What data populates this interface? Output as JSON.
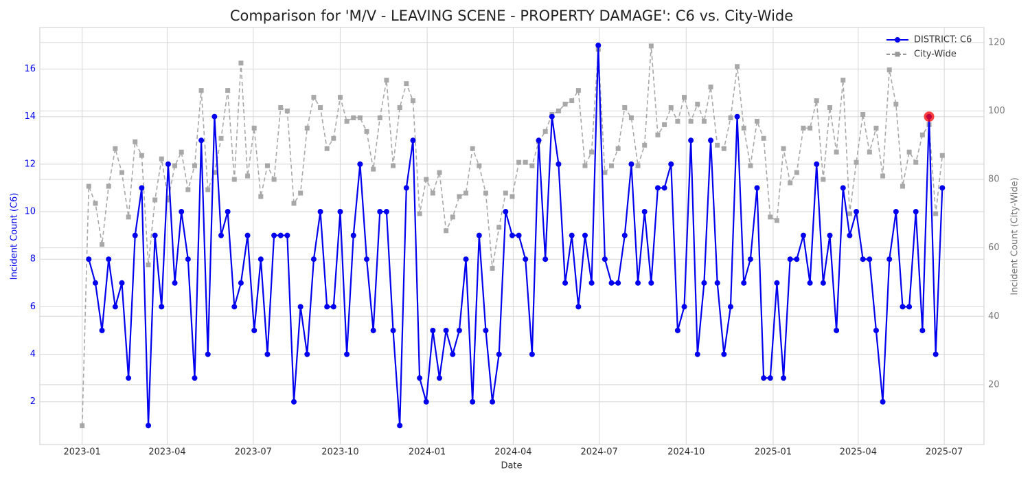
{
  "chart_data": {
    "type": "line",
    "title": "Comparison for 'M/V - LEAVING SCENE - PROPERTY DAMAGE': C6 vs. City-Wide",
    "x_label": "Date",
    "y_label": "Incident Count (C6)",
    "y2_label": "Incident Count (City-Wide)",
    "x": [
      0,
      1,
      2,
      3,
      4,
      5,
      6,
      7,
      8,
      9,
      10,
      11,
      12,
      13,
      14,
      15,
      16,
      17,
      18,
      19,
      20,
      21,
      22,
      23,
      24,
      25,
      26,
      27,
      28,
      29,
      30,
      31,
      32,
      33,
      34,
      35,
      36,
      37,
      38,
      39,
      40,
      41,
      42,
      43,
      44,
      45,
      46,
      47,
      48,
      49,
      50,
      51,
      52,
      53,
      54,
      55,
      56,
      57,
      58,
      59,
      60,
      61,
      62,
      63,
      64,
      65,
      66,
      67,
      68,
      69,
      70,
      71,
      72,
      73,
      74,
      75,
      76,
      77,
      78,
      79,
      80,
      81,
      82,
      83,
      84,
      85,
      86,
      87,
      88,
      89,
      90,
      91,
      92,
      93,
      94,
      95,
      96,
      97,
      98,
      99,
      100,
      101,
      102,
      103,
      104,
      105,
      106,
      107,
      108,
      109,
      110,
      111,
      112,
      113,
      114,
      115,
      116,
      117,
      118,
      119,
      120,
      121,
      122,
      123,
      124,
      125,
      126,
      127,
      128,
      129,
      130
    ],
    "series": [
      {
        "name": "DISTRICT: C6",
        "color": "#0000ee",
        "axis": "y",
        "style": "solid",
        "marker": "circle",
        "values": [
          null,
          8,
          7,
          5,
          8,
          6,
          7,
          3,
          9,
          11,
          1,
          9,
          6,
          12,
          7,
          10,
          8,
          3,
          13,
          4,
          14,
          9,
          10,
          6,
          7,
          9,
          5,
          8,
          4,
          9,
          9,
          9,
          2,
          6,
          4,
          8,
          10,
          6,
          6,
          10,
          4,
          9,
          12,
          8,
          5,
          10,
          10,
          5,
          1,
          11,
          13,
          3,
          2,
          5,
          3,
          5,
          4,
          5,
          8,
          2,
          9,
          5,
          2,
          4,
          10,
          9,
          9,
          8,
          4,
          13,
          8,
          14,
          12,
          7,
          9,
          6,
          9,
          7,
          17,
          8,
          7,
          7,
          9,
          12,
          7,
          10,
          7,
          11,
          11,
          12,
          5,
          6,
          13,
          4,
          7,
          13,
          7,
          4,
          6,
          14,
          7,
          8,
          11,
          3,
          3,
          7,
          3,
          8,
          8,
          9,
          7,
          12,
          7,
          9,
          5,
          11,
          9,
          10,
          8,
          8,
          5,
          2,
          8,
          10,
          6,
          6,
          10,
          5,
          14,
          4,
          11
        ]
      },
      {
        "name": "City-Wide",
        "color": "#999999",
        "axis": "y2",
        "style": "dashed",
        "marker": "square",
        "values": [
          8,
          78,
          73,
          61,
          78,
          89,
          82,
          69,
          91,
          87,
          55,
          74,
          86,
          74,
          84,
          88,
          77,
          84,
          106,
          77,
          82,
          92,
          106,
          80,
          114,
          81,
          95,
          75,
          84,
          80,
          101,
          100,
          73,
          76,
          95,
          104,
          101,
          89,
          92,
          104,
          97,
          98,
          98,
          94,
          83,
          98,
          109,
          84,
          101,
          108,
          103,
          70,
          80,
          76,
          82,
          65,
          69,
          75,
          76,
          89,
          84,
          76,
          54,
          66,
          76,
          75,
          85,
          85,
          84,
          91,
          94,
          99,
          100,
          102,
          103,
          106,
          84,
          88,
          118,
          82,
          84,
          89,
          101,
          98,
          84,
          90,
          119,
          93,
          96,
          101,
          97,
          104,
          97,
          102,
          97,
          107,
          90,
          89,
          98,
          113,
          95,
          84,
          97,
          92,
          69,
          68,
          89,
          79,
          82,
          95,
          95,
          103,
          80,
          101,
          88,
          109,
          70,
          85,
          99,
          88,
          95,
          81,
          112,
          102,
          78,
          88,
          85,
          93,
          96,
          70,
          87
        ]
      }
    ],
    "highlight": {
      "x": 128,
      "color": "#ff0000"
    },
    "xlim": [
      -6.4,
      136.3
    ],
    "xticks": [
      {
        "value": 0,
        "label": "2023-01"
      },
      {
        "value": 12.857,
        "label": "2023-04"
      },
      {
        "value": 25.857,
        "label": "2023-07"
      },
      {
        "value": 39,
        "label": "2023-10"
      },
      {
        "value": 52.143,
        "label": "2024-01"
      },
      {
        "value": 65.143,
        "label": "2024-04"
      },
      {
        "value": 78.143,
        "label": "2024-07"
      },
      {
        "value": 91.286,
        "label": "2024-10"
      },
      {
        "value": 104.43,
        "label": "2025-01"
      },
      {
        "value": 117.29,
        "label": "2025-04"
      },
      {
        "value": 130.29,
        "label": "2025-07"
      }
    ],
    "ylim": [
      0.2,
      17.75
    ],
    "yticks": [
      2,
      4,
      6,
      8,
      10,
      12,
      14,
      16
    ],
    "y2lim": [
      2.5,
      124.4
    ],
    "y2ticks": [
      20,
      40,
      60,
      80,
      100,
      120
    ],
    "grid": true,
    "legend": "upper right"
  }
}
